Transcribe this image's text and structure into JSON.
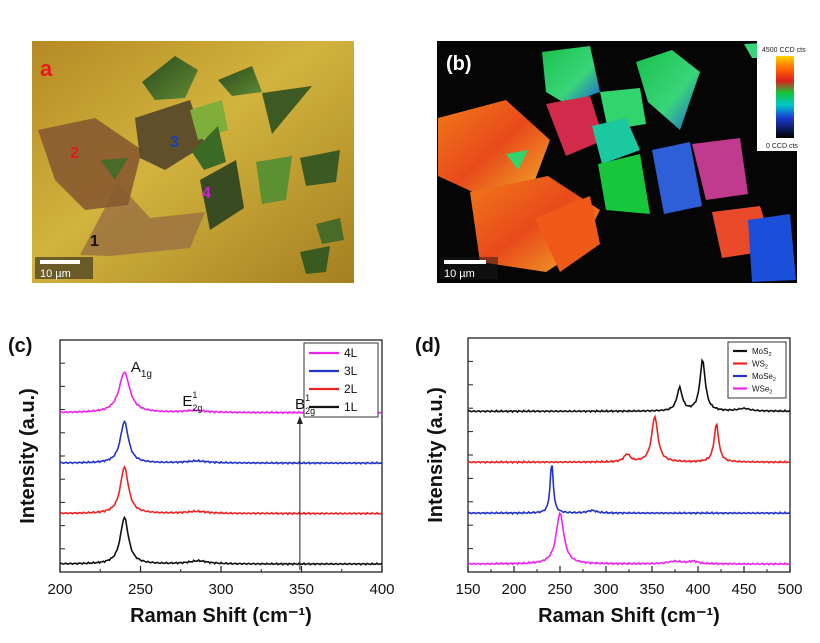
{
  "panel_a": {
    "label": "a",
    "scale_bar": "10 µm",
    "layer_markers": [
      "1",
      "2",
      "3",
      "4"
    ],
    "label_color": "#e8191c",
    "marker_colors": [
      "#111111",
      "#e8191c",
      "#1f3fb0",
      "#d21fd8"
    ]
  },
  "panel_b": {
    "label": "(b)",
    "scale_bar": "10 µm",
    "colorbar_max": "4500 CCD cts",
    "colorbar_min": "0 CCD cts"
  },
  "chart_data": [
    {
      "type": "line",
      "panel_label": "(c)",
      "xlabel": "Raman Shift (cm⁻¹)",
      "ylabel": "Intensity (a.u.)",
      "xlim": [
        200,
        400
      ],
      "x_ticks": [
        "200",
        "250",
        "300",
        "350",
        "400"
      ],
      "y_ticks_labeled": false,
      "legend_position": "top-right",
      "offsets": [
        0,
        1,
        2,
        3
      ],
      "series": [
        {
          "name": "4L",
          "color": "#ee22ee",
          "peaks": [
            {
              "x": 240,
              "h": 1.6,
              "w": 4
            },
            {
              "x": 284,
              "h": 0.08,
              "w": 8
            }
          ]
        },
        {
          "name": "3L",
          "color": "#2233cc",
          "peaks": [
            {
              "x": 240,
              "h": 1.65,
              "w": 3
            },
            {
              "x": 285,
              "h": 0.08,
              "w": 8
            }
          ]
        },
        {
          "name": "2L",
          "color": "#ee2222",
          "peaks": [
            {
              "x": 240,
              "h": 1.85,
              "w": 3
            },
            {
              "x": 285,
              "h": 0.08,
              "w": 8
            }
          ]
        },
        {
          "name": "1L",
          "color": "#111111",
          "peaks": [
            {
              "x": 240,
              "h": 1.85,
              "w": 3
            },
            {
              "x": 286,
              "h": 0.12,
              "w": 7
            }
          ]
        }
      ],
      "annotations": [
        {
          "base": "A",
          "sub": "1g",
          "sup": "",
          "x": 244
        },
        {
          "base": "E",
          "sub": "2g",
          "sup": "1",
          "x": 276
        },
        {
          "base": "B",
          "sub": "2g",
          "sup": "1",
          "x": 346
        }
      ]
    },
    {
      "type": "line",
      "panel_label": "(d)",
      "xlabel": "Raman Shift (cm⁻¹)",
      "ylabel": "Intensity (a.u.)",
      "xlim": [
        150,
        500
      ],
      "x_ticks": [
        "150",
        "200",
        "250",
        "300",
        "350",
        "400",
        "450",
        "500"
      ],
      "y_ticks_labeled": false,
      "legend_position": "top-right",
      "offsets": [
        0,
        1,
        2,
        3
      ],
      "series": [
        {
          "name": "MoS2",
          "color": "#111111",
          "peaks": [
            {
              "x": 380,
              "h": 0.9,
              "w": 3.5
            },
            {
              "x": 405,
              "h": 2.0,
              "w": 3.5
            },
            {
              "x": 450,
              "h": 0.1,
              "w": 8
            }
          ]
        },
        {
          "name": "WS2",
          "color": "#ee2222",
          "peaks": [
            {
              "x": 323,
              "h": 0.3,
              "w": 4
            },
            {
              "x": 353,
              "h": 1.8,
              "w": 4
            },
            {
              "x": 420,
              "h": 1.5,
              "w": 3
            }
          ]
        },
        {
          "name": "MoSe2",
          "color": "#2233cc",
          "peaks": [
            {
              "x": 241,
              "h": 2.0,
              "w": 2
            },
            {
              "x": 285,
              "h": 0.1,
              "w": 6
            }
          ]
        },
        {
          "name": "WSe2",
          "color": "#ee22ee",
          "peaks": [
            {
              "x": 250,
              "h": 2.0,
              "w": 5
            },
            {
              "x": 375,
              "h": 0.1,
              "w": 10
            },
            {
              "x": 395,
              "h": 0.1,
              "w": 6
            }
          ]
        }
      ],
      "legend_labels": [
        {
          "base": "MoS",
          "sub": "2"
        },
        {
          "base": "WS",
          "sub": "2"
        },
        {
          "base": "MoSe",
          "sub": "2"
        },
        {
          "base": "WSe",
          "sub": "2"
        }
      ]
    }
  ]
}
